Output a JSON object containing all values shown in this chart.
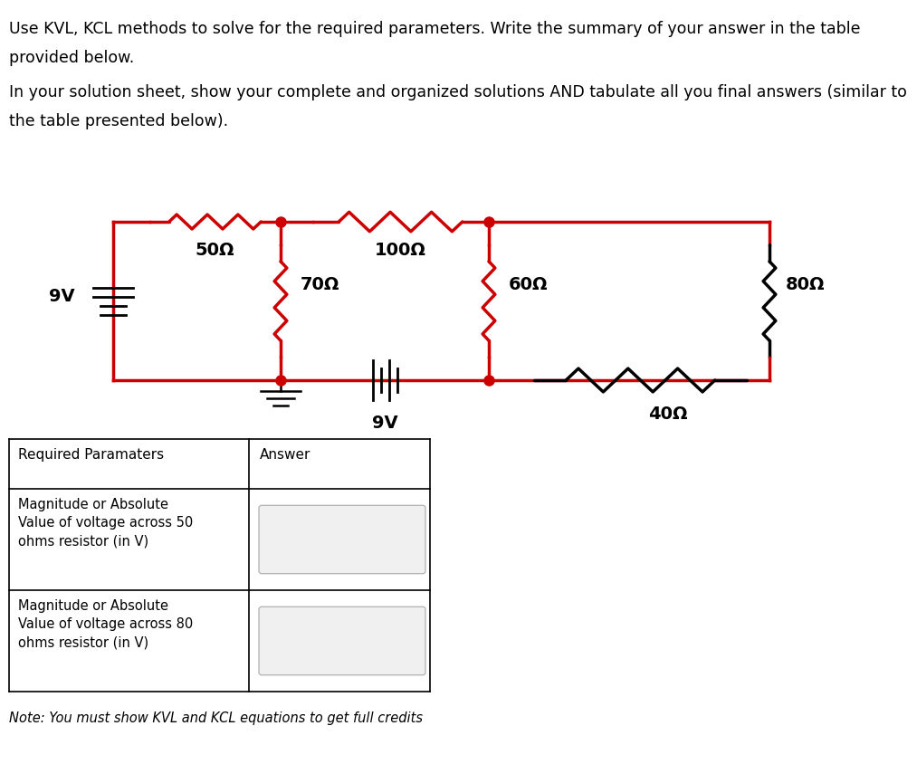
{
  "title_text1": "Use KVL, KCL methods to solve for the required parameters. Write the summary of your answer in the table",
  "title_text2": "provided below.",
  "title_text3": "In your solution sheet, show your complete and organized solutions AND tabulate all you final answers (similar to",
  "title_text4": "the table presented below).",
  "circuit_color": "#cc0000",
  "component_color": "#000000",
  "node_color": "#cc0000",
  "note_text": "Note: You must show KVL and KCL equations to get full credits",
  "bg_color": "#ffffff",
  "fig_width": 10.13,
  "fig_height": 8.65,
  "dpi": 100
}
